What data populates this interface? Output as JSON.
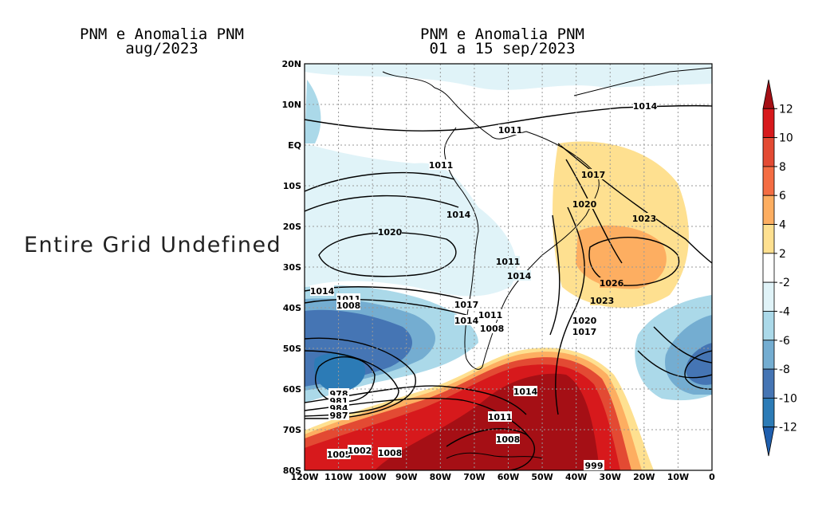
{
  "left_panel": {
    "title_line1": "PNM e Anomalia PNM",
    "title_line2": "aug/2023",
    "message": "Entire Grid Undefined"
  },
  "right_panel": {
    "title_line1": "PNM e Anomalia PNM",
    "title_line2": "01 a 15 sep/2023",
    "lat_labels": [
      "20N",
      "10N",
      "EQ",
      "10S",
      "20S",
      "30S",
      "40S",
      "50S",
      "60S",
      "70S",
      "80S"
    ],
    "lon_labels": [
      "120W",
      "110W",
      "100W",
      "90W",
      "80W",
      "70W",
      "60W",
      "50W",
      "40W",
      "30W",
      "20W",
      "10W",
      "0"
    ],
    "contour_labels": [
      "1014",
      "1011",
      "1011",
      "1017",
      "1014",
      "1020",
      "1023",
      "1020",
      "1026",
      "1011",
      "1014",
      "1014",
      "1011",
      "1008",
      "1017",
      "1011",
      "1014",
      "1008",
      "1023",
      "1020",
      "1017",
      "1014",
      "978",
      "981",
      "984",
      "987",
      "1011",
      "1008",
      "1005",
      "1002",
      "1008",
      "999"
    ]
  },
  "colorbar": {
    "labels": [
      "12",
      "10",
      "8",
      "6",
      "4",
      "2",
      "-2",
      "-4",
      "-6",
      "-8",
      "-10",
      "-12"
    ],
    "colors": [
      "#a50f15",
      "#d7191c",
      "#e34a33",
      "#f46d43",
      "#fdae61",
      "#fee090",
      "#ffffff",
      "#e0f3f8",
      "#abd9e9",
      "#74add1",
      "#4575b4",
      "#2c7bb6",
      "#1f5fae"
    ]
  }
}
